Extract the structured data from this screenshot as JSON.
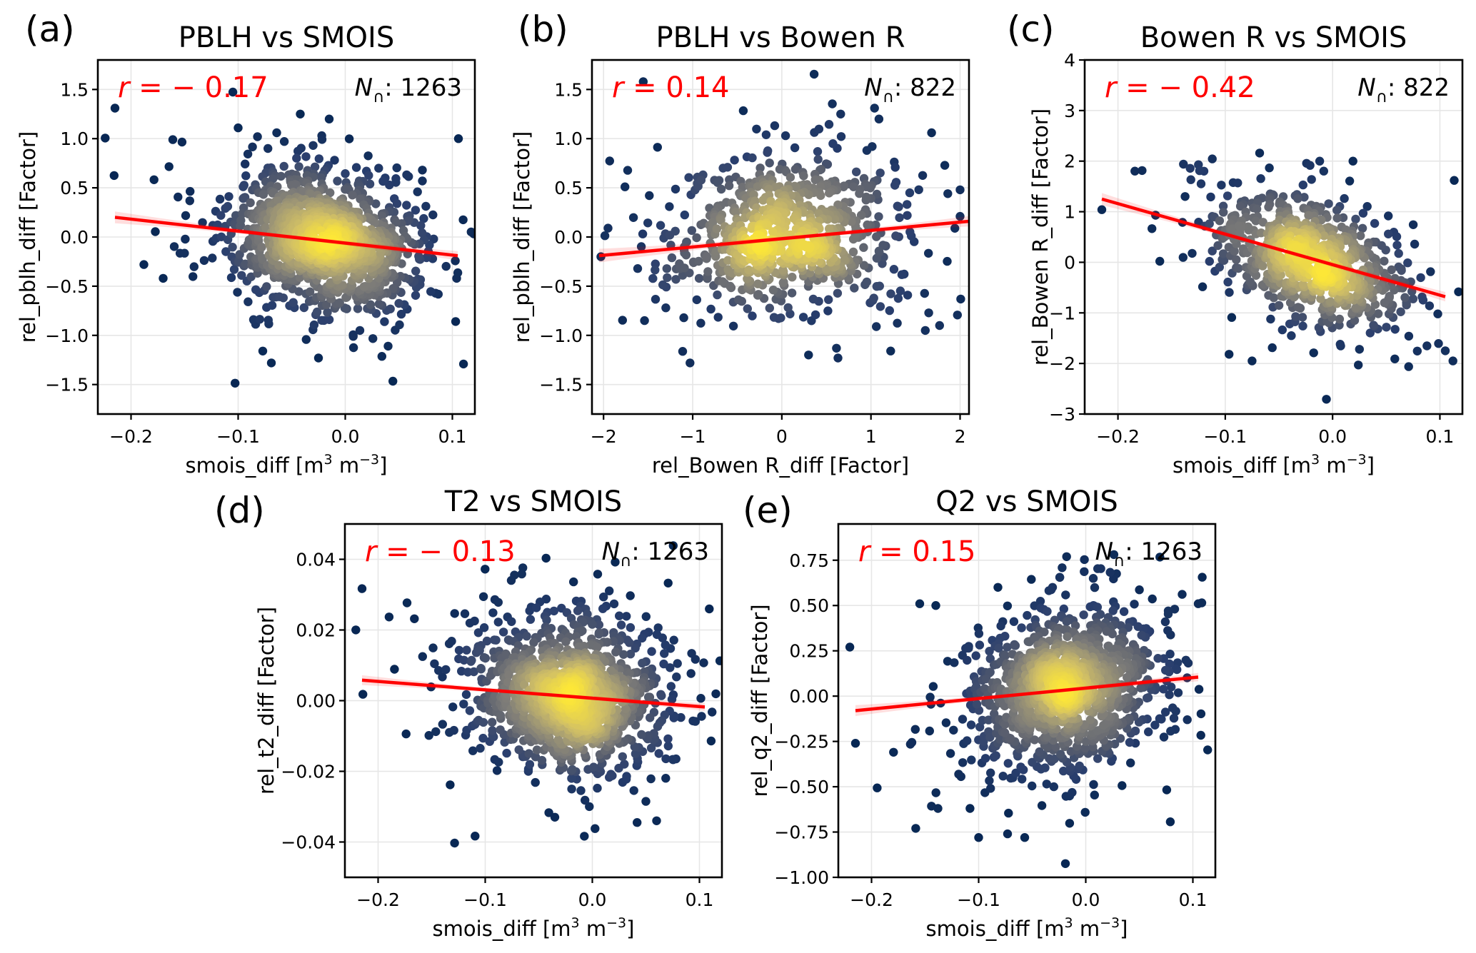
{
  "figure": {
    "colormap": [
      "#00224e",
      "#2a3f6e",
      "#575d6d",
      "#7c7b78",
      "#a59c74",
      "#d3c164",
      "#fde737"
    ],
    "regression_color": "#ff0000",
    "point_color_low_density": "#00224e",
    "point_color_high_density": "#fde737"
  },
  "chart_data": [
    {
      "type": "scatter",
      "panel_label": "(a)",
      "title": "PBLH vs SMOIS",
      "xlabel": "smois_diff [m",
      "xlabel_sup1": "3",
      "xlabel_mid": " m",
      "xlabel_sup2": "−3",
      "xlabel_end": "]",
      "ylabel": "rel_pblh_diff [Factor]",
      "xlim": [
        -0.231,
        0.121
      ],
      "ylim": [
        -1.8,
        1.8
      ],
      "xticks": [
        -0.2,
        -0.1,
        0.0,
        0.1
      ],
      "xtick_labels": [
        "−0.2",
        "−0.1",
        "0.0",
        "0.1"
      ],
      "yticks": [
        -1.5,
        -1.0,
        -0.5,
        0.0,
        0.5,
        1.0,
        1.5
      ],
      "ytick_labels": [
        "−1.5",
        "−1.0",
        "−0.5",
        "0.0",
        "0.5",
        "1.0",
        "1.5"
      ],
      "grid": true,
      "r_text": "r = − 0.17",
      "r_value": -0.17,
      "n_label": "N",
      "n_sub": "∩",
      "n_value": "1263",
      "n_points": 1263,
      "regression": {
        "x": [
          -0.215,
          0.105
        ],
        "y": [
          0.2,
          -0.19
        ],
        "ci_halfwidth_ends": 0.06,
        "ci_halfwidth_mid": 0.02
      },
      "cloud": {
        "cx": -0.02,
        "cy": -0.04,
        "sx": 0.042,
        "sy": 0.32,
        "rho": -0.17
      },
      "outliers": [
        [
          -0.215,
          1.31
        ],
        [
          -0.161,
          0.99
        ],
        [
          -0.042,
          1.25
        ],
        [
          -0.015,
          1.2
        ],
        [
          -0.1,
          1.11
        ],
        [
          -0.064,
          1.06
        ],
        [
          0.104,
          -0.42
        ],
        [
          0.04,
          -1.11
        ],
        [
          -0.069,
          -1.28
        ],
        [
          -0.025,
          -1.23
        ],
        [
          -0.077,
          -1.16
        ],
        [
          0.072,
          0.68
        ],
        [
          0.072,
          0.57
        ],
        [
          -0.188,
          -0.28
        ],
        [
          -0.17,
          -0.42
        ]
      ]
    },
    {
      "type": "scatter",
      "panel_label": "(b)",
      "title": "PBLH vs Bowen R",
      "xlabel": "rel_Bowen R_diff [Factor]",
      "ylabel": "rel_pblh_diff [Factor]",
      "xlim": [
        -2.13,
        2.1
      ],
      "ylim": [
        -1.8,
        1.8
      ],
      "xticks": [
        -2,
        -1,
        0,
        1,
        2
      ],
      "xtick_labels": [
        "−2",
        "−1",
        "0",
        "1",
        "2"
      ],
      "yticks": [
        -1.5,
        -1.0,
        -0.5,
        0.0,
        0.5,
        1.0,
        1.5
      ],
      "ytick_labels": [
        "−1.5",
        "−1.0",
        "−0.5",
        "0.0",
        "0.5",
        "1.0",
        "1.5"
      ],
      "grid": true,
      "r_text": "r = 0.14",
      "r_value": 0.14,
      "n_label": "N",
      "n_sub": "∩",
      "n_value": "822",
      "n_points": 822,
      "regression": {
        "x": [
          -2.05,
          2.1
        ],
        "y": [
          -0.19,
          0.16
        ],
        "ci_halfwidth_ends": 0.07,
        "ci_halfwidth_mid": 0.02
      },
      "cloud": {
        "cx": 0.0,
        "cy": 0.0,
        "sx": 0.62,
        "sy": 0.36,
        "rho": 0.14
      },
      "outliers": [
        [
          -2.03,
          -0.2
        ],
        [
          -1.95,
          0.09
        ],
        [
          -1.76,
          0.51
        ],
        [
          1.04,
          1.31
        ],
        [
          1.09,
          1.2
        ],
        [
          0.66,
          1.25
        ],
        [
          -1.03,
          -1.28
        ],
        [
          1.61,
          -0.95
        ],
        [
          1.77,
          -0.9
        ],
        [
          1.68,
          1.06
        ],
        [
          2.0,
          0.48
        ],
        [
          2.0,
          0.21
        ],
        [
          0.63,
          -1.23
        ],
        [
          0.3,
          -1.2
        ],
        [
          -1.54,
          -0.85
        ]
      ]
    },
    {
      "type": "scatter",
      "panel_label": "(c)",
      "title": "Bowen R vs SMOIS",
      "xlabel": "smois_diff [m",
      "xlabel_sup1": "3",
      "xlabel_mid": " m",
      "xlabel_sup2": "−3",
      "xlabel_end": "]",
      "ylabel": "rel_Bowen R_diff [Factor]",
      "xlim": [
        -0.231,
        0.121
      ],
      "ylim": [
        -3,
        4
      ],
      "xticks": [
        -0.2,
        -0.1,
        0.0,
        0.1
      ],
      "xtick_labels": [
        "−0.2",
        "−0.1",
        "0.0",
        "0.1"
      ],
      "yticks": [
        -3,
        -2,
        -1,
        0,
        1,
        2,
        3,
        4
      ],
      "ytick_labels": [
        "−3",
        "−2",
        "−1",
        "0",
        "1",
        "2",
        "3",
        "4"
      ],
      "grid": true,
      "r_text": "r = − 0.42",
      "r_value": -0.42,
      "n_label": "N",
      "n_sub": "∩",
      "n_value": "822",
      "n_points": 822,
      "regression": {
        "x": [
          -0.215,
          0.105
        ],
        "y": [
          1.25,
          -0.68
        ],
        "ci_halfwidth_ends": 0.12,
        "ci_halfwidth_mid": 0.04
      },
      "cloud": {
        "cx": -0.02,
        "cy": 0.05,
        "sx": 0.042,
        "sy": 0.6,
        "rho": -0.42
      },
      "outliers": [
        [
          -0.215,
          1.04
        ],
        [
          0.105,
          -1.75
        ],
        [
          -0.075,
          -1.95
        ],
        [
          0.024,
          -2.03
        ],
        [
          -0.068,
          2.16
        ],
        [
          -0.139,
          1.94
        ],
        [
          -0.125,
          1.93
        ],
        [
          0.019,
          2.0
        ],
        [
          -0.012,
          2.0
        ],
        [
          -0.161,
          0.02
        ],
        [
          0.071,
          -1.46
        ],
        [
          -0.094,
          -1.09
        ]
      ]
    },
    {
      "type": "scatter",
      "panel_label": "(d)",
      "title": "T2 vs SMOIS",
      "xlabel": "smois_diff [m",
      "xlabel_sup1": "3",
      "xlabel_mid": " m",
      "xlabel_sup2": "−3",
      "xlabel_end": "]",
      "ylabel": "rel_t2_diff [Factor]",
      "xlim": [
        -0.231,
        0.121
      ],
      "ylim": [
        -0.05,
        0.05
      ],
      "xticks": [
        -0.2,
        -0.1,
        0.0,
        0.1
      ],
      "xtick_labels": [
        "−0.2",
        "−0.1",
        "0.0",
        "0.1"
      ],
      "yticks": [
        -0.04,
        -0.02,
        0.0,
        0.02,
        0.04
      ],
      "ytick_labels": [
        "−0.04",
        "−0.02",
        "0.00",
        "0.02",
        "0.04"
      ],
      "grid": true,
      "r_text": "r = − 0.13",
      "r_value": -0.13,
      "n_label": "N",
      "n_sub": "∩",
      "n_value": "1263",
      "n_points": 1263,
      "regression": {
        "x": [
          -0.215,
          0.105
        ],
        "y": [
          0.0058,
          -0.0018
        ],
        "ci_halfwidth_ends": 0.0014,
        "ci_halfwidth_mid": 0.0005
      },
      "cloud": {
        "cx": -0.022,
        "cy": 0.0015,
        "sx": 0.042,
        "sy": 0.0095,
        "rho": -0.13
      },
      "outliers": [
        [
          -0.215,
          0.0317
        ],
        [
          0.005,
          0.0358
        ],
        [
          0.104,
          0.0107
        ],
        [
          0.0025,
          -0.0362
        ],
        [
          0.06,
          -0.034
        ],
        [
          -0.091,
          0.0286
        ],
        [
          -0.015,
          0.0282
        ],
        [
          -0.119,
          0.0246
        ],
        [
          -0.035,
          -0.033
        ],
        [
          0.05,
          -0.0285
        ]
      ]
    },
    {
      "type": "scatter",
      "panel_label": "(e)",
      "title": "Q2 vs SMOIS",
      "xlabel": "smois_diff [m",
      "xlabel_sup1": "3",
      "xlabel_mid": " m",
      "xlabel_sup2": "−3",
      "xlabel_end": "]",
      "ylabel": "rel_q2_diff [Factor]",
      "xlim": [
        -0.231,
        0.121
      ],
      "ylim": [
        -1.0,
        0.95
      ],
      "xticks": [
        -0.2,
        -0.1,
        0.0,
        0.1
      ],
      "xtick_labels": [
        "−0.2",
        "−0.1",
        "0.0",
        "0.1"
      ],
      "yticks": [
        -1.0,
        -0.75,
        -0.5,
        -0.25,
        0.0,
        0.25,
        0.5,
        0.75
      ],
      "ytick_labels": [
        "−1.00",
        "−0.75",
        "−0.50",
        "−0.25",
        "0.00",
        "0.25",
        "0.50",
        "0.75"
      ],
      "grid": true,
      "r_text": "r = 0.15",
      "r_value": 0.15,
      "n_label": "N",
      "n_sub": "∩",
      "n_value": "1263",
      "n_points": 1263,
      "regression": {
        "x": [
          -0.215,
          0.105
        ],
        "y": [
          -0.08,
          0.105
        ],
        "ci_halfwidth_ends": 0.03,
        "ci_halfwidth_mid": 0.01
      },
      "cloud": {
        "cx": -0.018,
        "cy": 0.03,
        "sx": 0.042,
        "sy": 0.2,
        "rho": 0.15
      },
      "outliers": [
        [
          -0.215,
          -0.26
        ],
        [
          0.105,
          0.51
        ],
        [
          0.007,
          0.65
        ],
        [
          -0.031,
          0.6
        ],
        [
          -0.082,
          0.6
        ],
        [
          -0.155,
          0.51
        ],
        [
          -0.14,
          0.5
        ],
        [
          -0.1,
          -0.78
        ],
        [
          -0.073,
          -0.76
        ],
        [
          -0.057,
          -0.78
        ],
        [
          -0.138,
          -0.62
        ],
        [
          0.077,
          0.47
        ],
        [
          0.083,
          0.48
        ]
      ]
    }
  ]
}
